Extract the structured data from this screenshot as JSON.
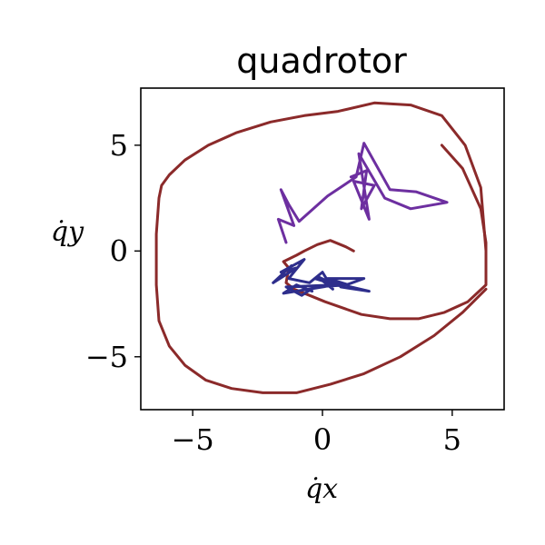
{
  "chart_data": {
    "type": "line",
    "title": "quadrotor",
    "xlabel": "q̇x",
    "ylabel": "q̇y",
    "xlim": [
      -7,
      7
    ],
    "ylim": [
      -7.5,
      7.7
    ],
    "xticks": [
      -5,
      0,
      5
    ],
    "xtick_labels": [
      "−5",
      "0",
      "5"
    ],
    "yticks": [
      -5,
      0,
      5
    ],
    "ytick_labels": [
      "−5",
      "0",
      "5"
    ],
    "grid": false,
    "legend": "none",
    "series": [
      {
        "color": "#8b2a2a",
        "x": [
          4.6,
          5.4,
          6.1,
          6.3,
          6.3,
          5.6,
          4.7,
          3.7,
          2.6,
          1.5,
          0.8,
          0.1,
          -0.5,
          -1.1,
          -1.4,
          -1.3,
          -1.5,
          -1.0,
          -0.7,
          -0.2,
          0.3,
          0.9,
          1.2
        ],
        "y": [
          5.0,
          3.9,
          2.0,
          0.4,
          -1.6,
          -2.4,
          -2.9,
          -3.2,
          -3.2,
          -3.0,
          -2.7,
          -2.4,
          -2.1,
          -1.8,
          -1.5,
          -0.8,
          -0.5,
          -0.2,
          0.0,
          0.3,
          0.5,
          0.2,
          0.0
        ]
      },
      {
        "color": "#8b2a2a",
        "x": [
          6.3,
          5.4,
          4.3,
          3.0,
          1.6,
          0.3,
          -1.0,
          -2.3,
          -3.5,
          -4.5,
          -5.3,
          -5.9,
          -6.3,
          -6.4,
          -6.4,
          -6.3,
          -6.2,
          -5.9,
          -5.3,
          -4.4,
          -3.3,
          -2.0,
          -0.7,
          0.6,
          2.0,
          3.4,
          4.6,
          5.5,
          6.1,
          6.3
        ],
        "y": [
          -1.8,
          -2.9,
          -4.0,
          -5.0,
          -5.8,
          -6.3,
          -6.7,
          -6.7,
          -6.5,
          -6.1,
          -5.4,
          -4.5,
          -3.3,
          -1.6,
          0.8,
          2.5,
          3.1,
          3.6,
          4.3,
          5.0,
          5.6,
          6.1,
          6.4,
          6.6,
          7.0,
          6.9,
          6.4,
          5.0,
          3.0,
          0.0
        ]
      },
      {
        "color": "#2e2e8c",
        "x": [
          -1.2,
          -1.9,
          -1.0,
          -1.6,
          -0.7,
          -1.3,
          -0.5,
          0.0,
          0.4,
          -0.2,
          0.5,
          -1.4,
          -0.8,
          -0.3,
          1.0,
          0.2,
          1.6,
          0.7,
          1.8,
          -0.3,
          0.5,
          -1.5,
          -1.0,
          -0.4
        ],
        "y": [
          -0.7,
          -1.5,
          -0.8,
          -1.0,
          -0.4,
          -1.3,
          -1.5,
          -1.0,
          -1.8,
          -1.2,
          -1.6,
          -1.7,
          -2.1,
          -1.7,
          -1.6,
          -1.3,
          -1.3,
          -1.7,
          -1.9,
          -1.3,
          -1.6,
          -2.0,
          -1.6,
          -1.9
        ]
      },
      {
        "color": "#6d2fa0",
        "x": [
          -1.4,
          -1.7,
          -1.1,
          -1.6,
          -1.3,
          -0.9,
          0.2,
          1.3,
          1.6,
          2.6,
          3.6,
          4.8,
          3.4,
          2.4,
          1.4,
          1.8,
          1.2,
          2.0,
          1.5,
          1.7,
          1.1
        ],
        "y": [
          0.4,
          1.5,
          1.2,
          2.9,
          2.2,
          1.4,
          2.6,
          3.5,
          5.1,
          2.9,
          2.8,
          2.3,
          2.0,
          2.5,
          4.6,
          1.5,
          3.3,
          3.1,
          2.0,
          3.8,
          3.5
        ]
      }
    ]
  }
}
